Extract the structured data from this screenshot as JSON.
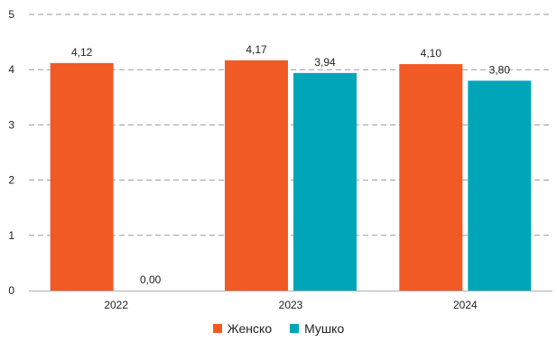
{
  "chart_data": {
    "type": "bar",
    "categories": [
      "2022",
      "2023",
      "2024"
    ],
    "series": [
      {
        "name": "Женско",
        "values": [
          4.12,
          4.17,
          4.1
        ],
        "labels": [
          "4,12",
          "4,17",
          "4,10"
        ],
        "color": "#F15A24"
      },
      {
        "name": "Мушко",
        "values": [
          0.0,
          3.94,
          3.8
        ],
        "labels": [
          "0,00",
          "3,94",
          "3,80"
        ],
        "color": "#00A6B8"
      }
    ],
    "ylim": [
      0,
      5
    ],
    "yticks": [
      "0",
      "1",
      "2",
      "3",
      "4",
      "5"
    ],
    "grid": true,
    "legend_position": "bottom"
  }
}
